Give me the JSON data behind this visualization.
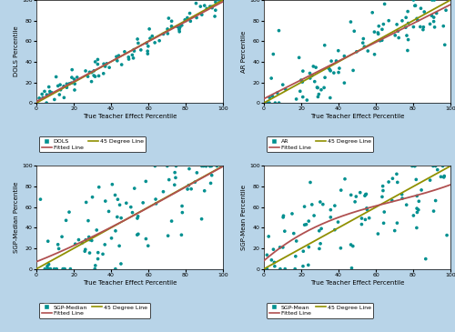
{
  "background_color": "#b8d4e8",
  "plot_bg_color": "#ffffff",
  "scatter_color": "#009090",
  "fitted_line_color": "#b05050",
  "degree45_line_color": "#909000",
  "xlim": [
    0,
    100
  ],
  "ylim": [
    0,
    100
  ],
  "xticks": [
    0,
    20,
    40,
    60,
    80,
    100
  ],
  "yticks": [
    0,
    20,
    40,
    60,
    80,
    100
  ],
  "xlabel": "True Teacher Effect Percentile",
  "ylabels": [
    "DOLS Percentile",
    "AR Percentile",
    "SGP-Median Percentile",
    "SGP-Mean Percentile"
  ],
  "legend_labels": [
    [
      "DOLS",
      "Fitted Line",
      "45 Degree Line"
    ],
    [
      "AR",
      "Fitted Line",
      "45 Degree Line"
    ],
    [
      "SGP-Median",
      "Fitted Line",
      "45 Degree Line"
    ],
    [
      "SGP-Mean",
      "Fitted Line",
      "45 Degree Line"
    ]
  ],
  "n_points": 100,
  "seeds": [
    42,
    55,
    77,
    99
  ],
  "noise_levels": [
    6,
    13,
    25,
    25
  ],
  "use_poly_fit": [
    false,
    false,
    true,
    true
  ],
  "poly_degree": 3
}
